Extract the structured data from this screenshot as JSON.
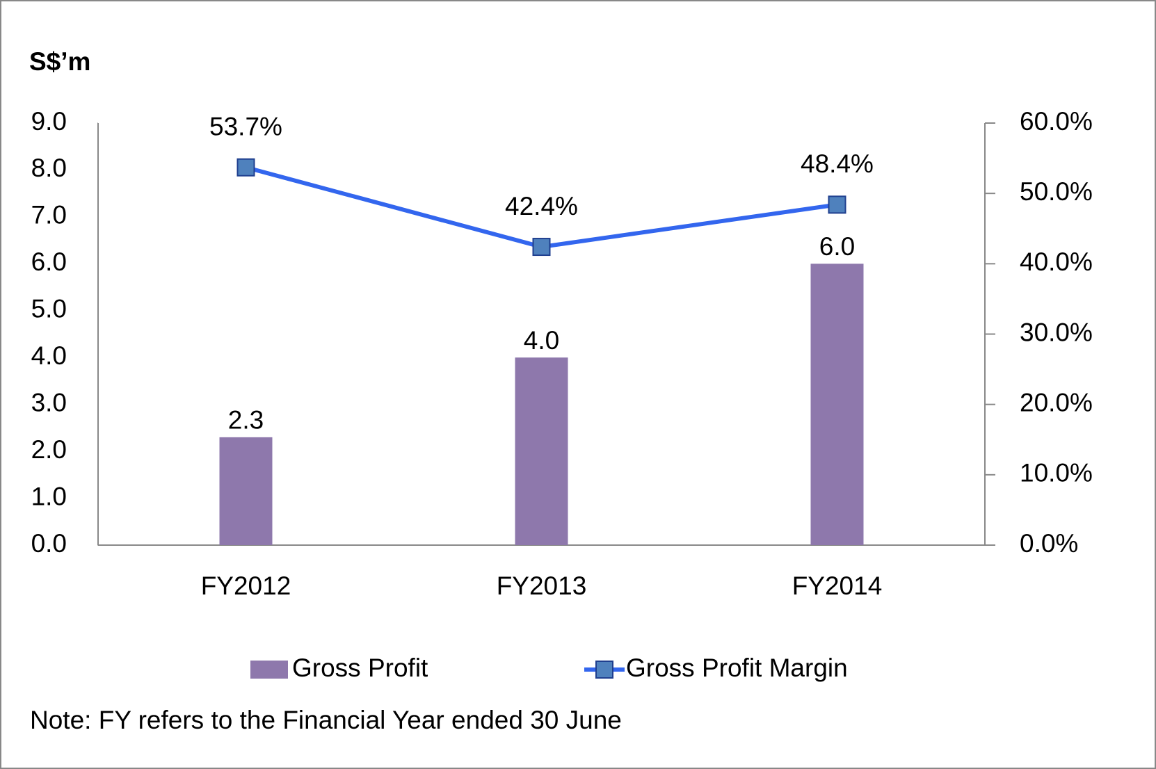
{
  "chart_data": {
    "type": "bar",
    "y_label": "S$’m",
    "categories": [
      "FY2012",
      "FY2013",
      "FY2014"
    ],
    "series": [
      {
        "name": "Gross Profit",
        "type": "bar",
        "color": "#8e78ac",
        "values": [
          2.3,
          4.0,
          6.0
        ],
        "value_labels": [
          "2.3",
          "4.0",
          "6.0"
        ]
      },
      {
        "name": "Gross Profit Margin",
        "type": "line",
        "axis": "y2",
        "color": "#3366ee",
        "marker_color": "#4f81bd",
        "values": [
          53.7,
          42.4,
          48.4
        ],
        "value_labels": [
          "53.7%",
          "42.4%",
          "48.4%"
        ]
      }
    ],
    "ylim": [
      0,
      9
    ],
    "yticks": [
      {
        "value": 0,
        "label": "0.0"
      },
      {
        "value": 1,
        "label": "1.0"
      },
      {
        "value": 2,
        "label": "2.0"
      },
      {
        "value": 3,
        "label": "3.0"
      },
      {
        "value": 4,
        "label": "4.0"
      },
      {
        "value": 5,
        "label": "5.0"
      },
      {
        "value": 6,
        "label": "6.0"
      },
      {
        "value": 7,
        "label": "7.0"
      },
      {
        "value": 8,
        "label": "8.0"
      },
      {
        "value": 9,
        "label": "9.0"
      }
    ],
    "y2lim": [
      0,
      60
    ],
    "y2ticks": [
      {
        "value": 0,
        "label": "0.0%"
      },
      {
        "value": 10,
        "label": "10.0%"
      },
      {
        "value": 20,
        "label": "20.0%"
      },
      {
        "value": 30,
        "label": "30.0%"
      },
      {
        "value": 40,
        "label": "40.0%"
      },
      {
        "value": 50,
        "label": "50.0%"
      },
      {
        "value": 60,
        "label": "60.0%"
      }
    ],
    "legend": "bottom",
    "note": "Note: FY refers to the Financial Year ended 30 June"
  }
}
